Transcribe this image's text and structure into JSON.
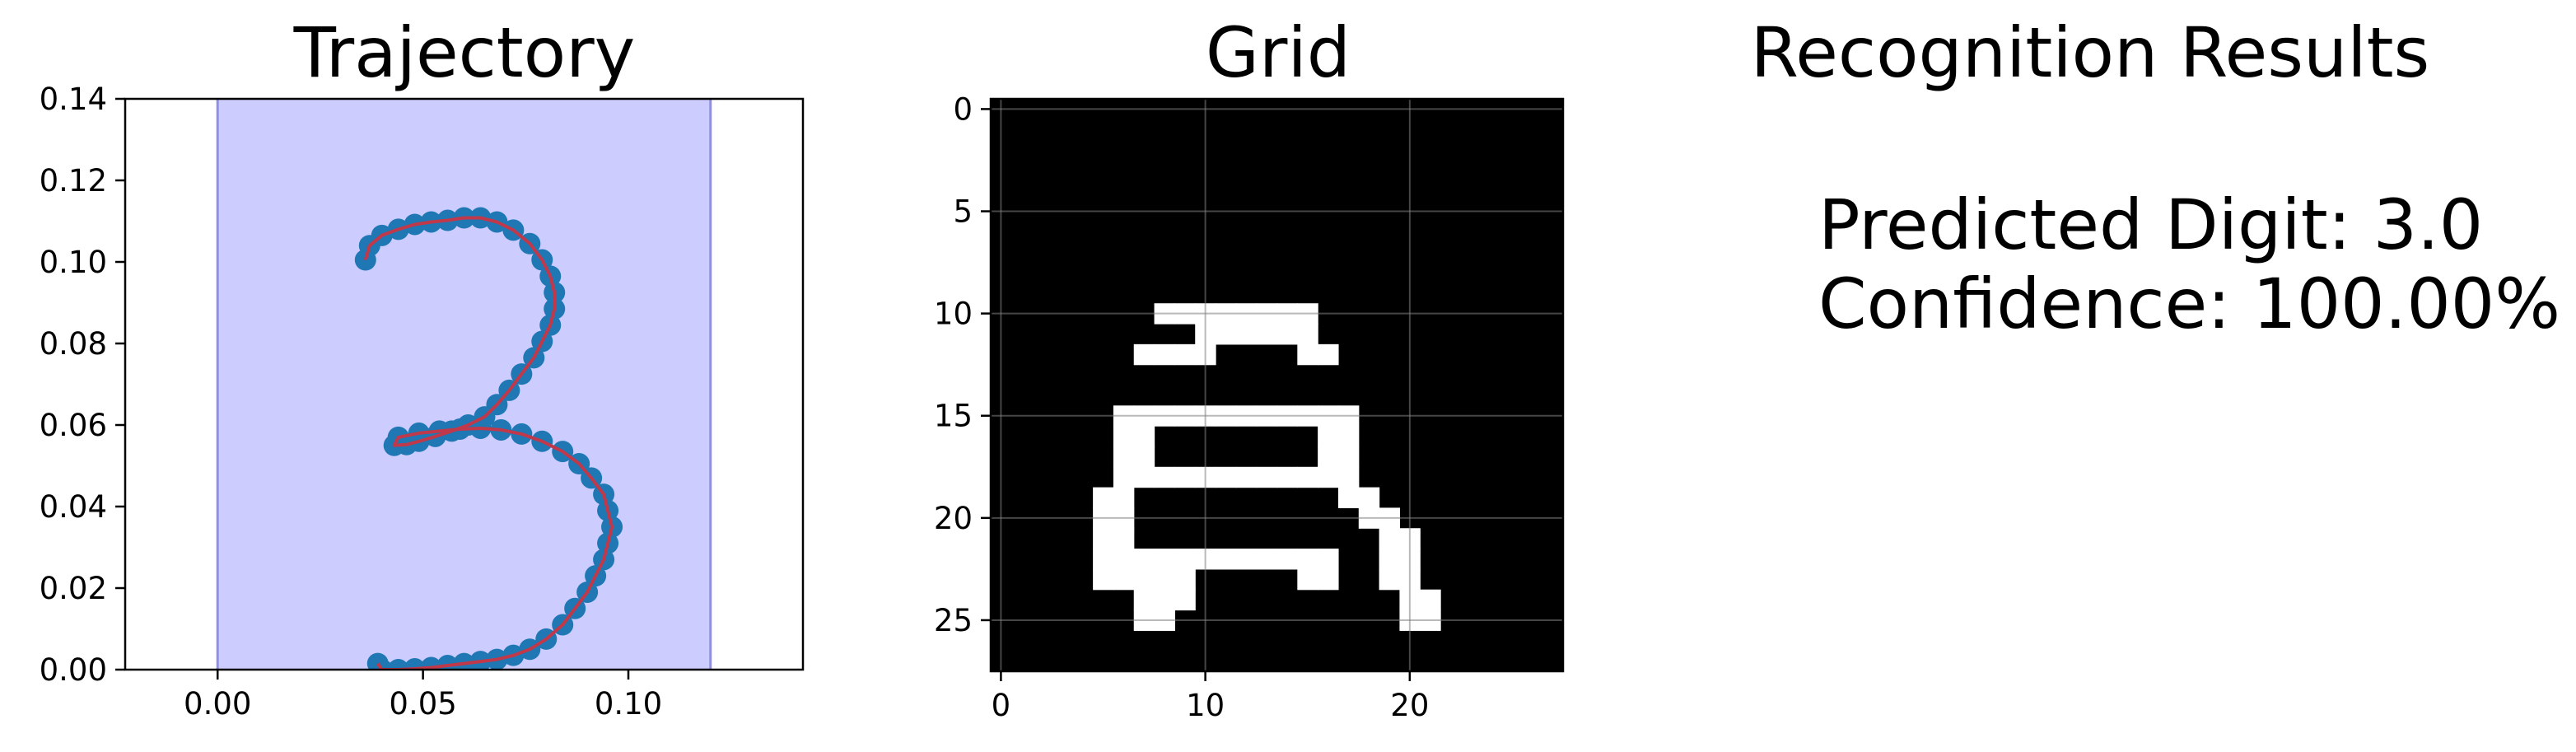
{
  "chart_data": [
    {
      "type": "line",
      "title": "Trajectory",
      "xlabel": "",
      "ylabel": "",
      "xlim": [
        -0.0225,
        0.1425
      ],
      "ylim": [
        0,
        0.14
      ],
      "x_ticks": [
        0.0,
        0.05,
        0.1
      ],
      "x_tick_labels": [
        "0.00",
        "0.05",
        "0.10"
      ],
      "y_ticks": [
        0.0,
        0.02,
        0.04,
        0.06,
        0.08,
        0.1,
        0.12,
        0.14
      ],
      "y_tick_labels": [
        "0.00",
        "0.02",
        "0.04",
        "0.06",
        "0.08",
        "0.10",
        "0.12",
        "0.14"
      ],
      "grid": false,
      "shaded_band": {
        "x0": 0.0,
        "x1": 0.12,
        "color": "#ccccff",
        "edge": "#8f8fe6"
      },
      "series": [
        {
          "color": "#1f77b4",
          "line_color": "#c0394b",
          "x": [
            0.036,
            0.037,
            0.04,
            0.044,
            0.048,
            0.052,
            0.056,
            0.06,
            0.064,
            0.068,
            0.072,
            0.076,
            0.079,
            0.081,
            0.082,
            0.082,
            0.081,
            0.079,
            0.077,
            0.074,
            0.071,
            0.068,
            0.065,
            0.061,
            0.057,
            0.053,
            0.049,
            0.046,
            0.043,
            0.044,
            0.049,
            0.054,
            0.059,
            0.064,
            0.069,
            0.074,
            0.079,
            0.084,
            0.088,
            0.091,
            0.094,
            0.095,
            0.096,
            0.095,
            0.094,
            0.092,
            0.09,
            0.087,
            0.084,
            0.08,
            0.076,
            0.072,
            0.068,
            0.064,
            0.06,
            0.056,
            0.052,
            0.048,
            0.044,
            0.04,
            0.039
          ],
          "y": [
            0.1005,
            0.104,
            0.1065,
            0.108,
            0.1092,
            0.1098,
            0.1102,
            0.1108,
            0.1108,
            0.1098,
            0.1078,
            0.1045,
            0.1005,
            0.0965,
            0.0925,
            0.0885,
            0.0845,
            0.0805,
            0.0765,
            0.0725,
            0.0685,
            0.065,
            0.062,
            0.06,
            0.0585,
            0.0572,
            0.056,
            0.0552,
            0.055,
            0.057,
            0.058,
            0.0585,
            0.059,
            0.0592,
            0.0588,
            0.0578,
            0.056,
            0.0535,
            0.0505,
            0.047,
            0.043,
            0.039,
            0.035,
            0.031,
            0.027,
            0.023,
            0.019,
            0.015,
            0.011,
            0.0075,
            0.005,
            0.0035,
            0.0025,
            0.002,
            0.0015,
            0.001,
            0.0005,
            0.0002,
            0.0,
            0.0,
            0.0015
          ]
        }
      ]
    },
    {
      "type": "heatmap",
      "title": "Grid",
      "xlim": [
        -0.5,
        27.5
      ],
      "ylim": [
        27.5,
        -0.5
      ],
      "x_ticks": [
        0,
        10,
        20
      ],
      "x_tick_labels": [
        "0",
        "10",
        "20"
      ],
      "y_ticks": [
        0,
        5,
        10,
        15,
        20,
        25
      ],
      "y_tick_labels": [
        "0",
        "5",
        "10",
        "15",
        "20",
        "25"
      ],
      "grid": true,
      "colormap": [
        "#000000",
        "#ffffff"
      ],
      "cells": [
        [
          8,
          10
        ],
        [
          9,
          10
        ],
        [
          10,
          10
        ],
        [
          11,
          10
        ],
        [
          12,
          10
        ],
        [
          13,
          10
        ],
        [
          14,
          10
        ],
        [
          15,
          10
        ],
        [
          10,
          11
        ],
        [
          11,
          11
        ],
        [
          12,
          11
        ],
        [
          13,
          11
        ],
        [
          14,
          11
        ],
        [
          15,
          11
        ],
        [
          7,
          12
        ],
        [
          8,
          12
        ],
        [
          9,
          12
        ],
        [
          10,
          12
        ],
        [
          15,
          12
        ],
        [
          16,
          12
        ],
        [
          6,
          15
        ],
        [
          7,
          15
        ],
        [
          8,
          15
        ],
        [
          9,
          15
        ],
        [
          10,
          15
        ],
        [
          11,
          15
        ],
        [
          12,
          15
        ],
        [
          13,
          15
        ],
        [
          14,
          15
        ],
        [
          15,
          15
        ],
        [
          16,
          15
        ],
        [
          17,
          15
        ],
        [
          6,
          16
        ],
        [
          7,
          16
        ],
        [
          16,
          16
        ],
        [
          17,
          16
        ],
        [
          6,
          17
        ],
        [
          7,
          17
        ],
        [
          16,
          17
        ],
        [
          17,
          17
        ],
        [
          6,
          18
        ],
        [
          7,
          18
        ],
        [
          8,
          18
        ],
        [
          9,
          18
        ],
        [
          10,
          18
        ],
        [
          11,
          18
        ],
        [
          12,
          18
        ],
        [
          13,
          18
        ],
        [
          14,
          18
        ],
        [
          15,
          18
        ],
        [
          16,
          18
        ],
        [
          17,
          18
        ],
        [
          5,
          19
        ],
        [
          6,
          19
        ],
        [
          17,
          19
        ],
        [
          18,
          19
        ],
        [
          5,
          20
        ],
        [
          6,
          20
        ],
        [
          18,
          20
        ],
        [
          19,
          20
        ],
        [
          5,
          21
        ],
        [
          6,
          21
        ],
        [
          19,
          21
        ],
        [
          20,
          21
        ],
        [
          5,
          22
        ],
        [
          6,
          22
        ],
        [
          7,
          22
        ],
        [
          8,
          22
        ],
        [
          9,
          22
        ],
        [
          10,
          22
        ],
        [
          11,
          22
        ],
        [
          12,
          22
        ],
        [
          13,
          22
        ],
        [
          14,
          22
        ],
        [
          15,
          22
        ],
        [
          16,
          22
        ],
        [
          19,
          22
        ],
        [
          20,
          22
        ],
        [
          5,
          23
        ],
        [
          6,
          23
        ],
        [
          7,
          23
        ],
        [
          8,
          23
        ],
        [
          9,
          23
        ],
        [
          15,
          23
        ],
        [
          16,
          23
        ],
        [
          19,
          23
        ],
        [
          20,
          23
        ],
        [
          7,
          24
        ],
        [
          8,
          24
        ],
        [
          9,
          24
        ],
        [
          20,
          24
        ],
        [
          21,
          24
        ],
        [
          7,
          25
        ],
        [
          8,
          25
        ],
        [
          20,
          25
        ],
        [
          21,
          25
        ]
      ],
      "cells_note": "pairs are [column, row] of lit pixels"
    }
  ],
  "results": {
    "title": "Recognition Results",
    "predicted_line": "Predicted Digit: 3.0",
    "confidence_line": "Confidence: 100.00%"
  }
}
